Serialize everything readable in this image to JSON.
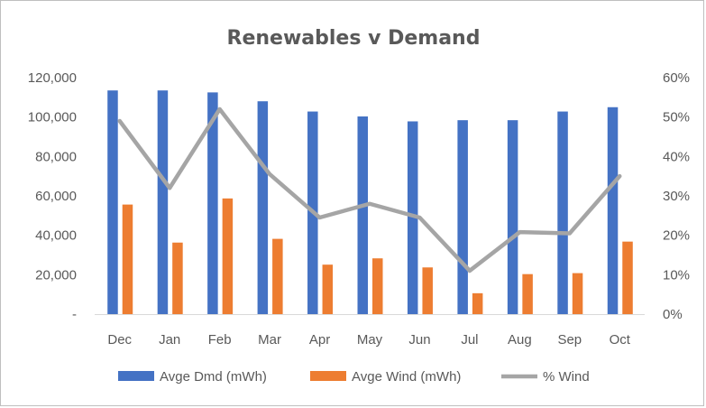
{
  "chart_data": {
    "type": "bar",
    "title": "Renewables v Demand",
    "categories": [
      "Dec",
      "Jan",
      "Feb",
      "Mar",
      "Apr",
      "May",
      "Jun",
      "Jul",
      "Aug",
      "Sep",
      "Oct"
    ],
    "series": [
      {
        "name": "Avge Dmd (mWh)",
        "type": "bar",
        "axis": "primary",
        "color": "#4472c4",
        "values": [
          113500,
          113500,
          112500,
          108000,
          102800,
          100300,
          97800,
          98400,
          98400,
          102800,
          105000
        ]
      },
      {
        "name": "Avge Wind (mWh)",
        "type": "bar",
        "axis": "primary",
        "color": "#ed7d31",
        "values": [
          55600,
          36300,
          58700,
          38200,
          25100,
          28300,
          23700,
          10600,
          20300,
          20800,
          36800
        ]
      },
      {
        "name": "% Wind",
        "type": "line",
        "axis": "secondary",
        "color": "#a5a5a5",
        "values": [
          49,
          32,
          52,
          35.5,
          24.5,
          28,
          24.5,
          11,
          20.8,
          20.5,
          35
        ]
      }
    ],
    "y_primary": {
      "min": 0,
      "max": 120000,
      "step": 20000,
      "tick_labels": [
        "-",
        "20,000",
        "40,000",
        "60,000",
        "80,000",
        "100,000",
        "120,000"
      ]
    },
    "y_secondary": {
      "min": 0,
      "max": 60,
      "step": 10,
      "tick_labels": [
        "0%",
        "10%",
        "20%",
        "30%",
        "40%",
        "50%",
        "60%"
      ]
    },
    "grid": false,
    "legend_position": "bottom"
  }
}
